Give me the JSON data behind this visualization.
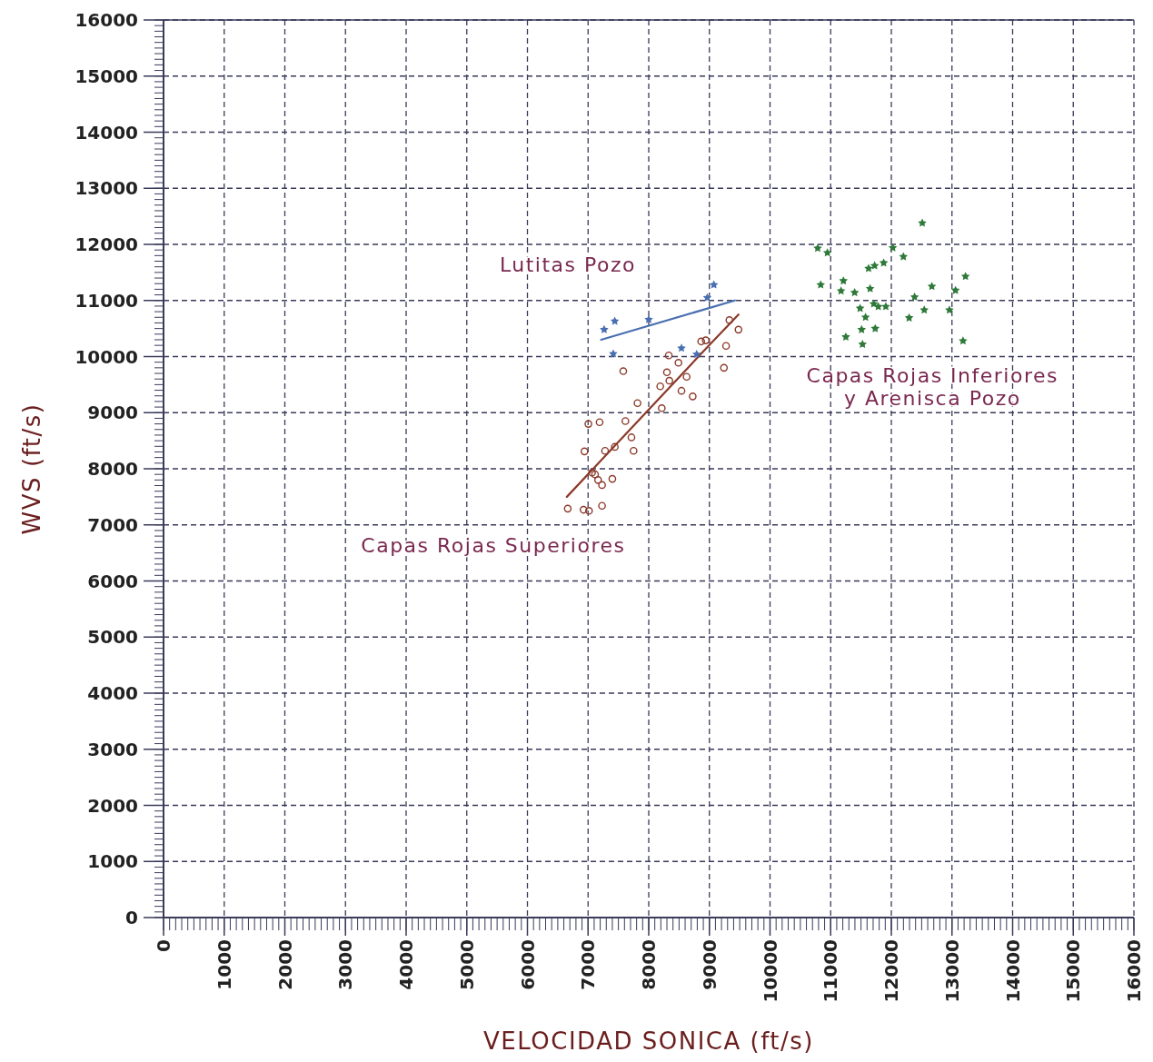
{
  "chart_data": {
    "type": "scatter",
    "xlabel": "VELOCIDAD SONICA (ft/s)",
    "ylabel": "WVS (ft/s)",
    "xlim": [
      0,
      16000
    ],
    "ylim": [
      0,
      16000
    ],
    "xticks": [
      0,
      1000,
      2000,
      3000,
      4000,
      5000,
      6000,
      7000,
      8000,
      9000,
      10000,
      11000,
      12000,
      13000,
      14000,
      15000,
      16000
    ],
    "yticks": [
      0,
      1000,
      2000,
      3000,
      4000,
      5000,
      6000,
      7000,
      8000,
      9000,
      10000,
      11000,
      12000,
      13000,
      14000,
      15000,
      16000
    ],
    "grid": true,
    "series": [
      {
        "name": "Capas Rojas Superiores",
        "marker": "circle",
        "color": "#8b3a2a",
        "x": [
          6665,
          6925,
          7015,
          7230,
          6940,
          7005,
          7190,
          7065,
          7115,
          7165,
          7230,
          7400,
          7280,
          7440,
          7615,
          7715,
          7750,
          7815,
          7580,
          8215,
          8190,
          8300,
          8340,
          8490,
          8330,
          8540,
          8625,
          8725,
          8865,
          8940,
          9330,
          9480,
          9275,
          9240
        ],
        "values": [
          7290,
          7270,
          7250,
          7340,
          8310,
          8800,
          8830,
          7930,
          7900,
          7800,
          7710,
          7820,
          8320,
          8390,
          8850,
          8560,
          8320,
          9170,
          9740,
          9080,
          9470,
          9720,
          9570,
          9890,
          10020,
          9390,
          9640,
          9290,
          10270,
          10290,
          10650,
          10480,
          10190,
          9800
        ]
      },
      {
        "type": "line",
        "marker": "none",
        "color": "#8b3a2a",
        "x": [
          6650,
          8950,
          9480
        ],
        "values": [
          7500,
          10150,
          10750
        ]
      },
      {
        "name": "Lutitas Pozo",
        "marker": "star",
        "color": "#4a6fb0",
        "x": [
          7265,
          7440,
          8000,
          7415,
          8965,
          9074,
          8790,
          8540
        ],
        "values": [
          10480,
          10630,
          10660,
          10050,
          11050,
          11280,
          10040,
          10150
        ]
      },
      {
        "type": "line",
        "marker": "none",
        "color": "#4a6fb0",
        "x": [
          7215,
          9420
        ],
        "values": [
          10300,
          11000
        ]
      },
      {
        "name": "Capas Rojas Inferiores\ny Arenisca Pozo",
        "marker": "star",
        "color": "#2f7a3a",
        "x": [
          12510,
          10786,
          10946,
          12024,
          12199,
          11625,
          11725,
          11874,
          10836,
          11210,
          11171,
          11395,
          11650,
          12668,
          13223,
          13058,
          12384,
          11710,
          11785,
          11909,
          11485,
          12543,
          12958,
          11575,
          12294,
          11510,
          11734,
          11250,
          11525,
          13182
        ],
        "values": [
          12380,
          11930,
          11850,
          11940,
          11780,
          11570,
          11620,
          11670,
          11280,
          11350,
          11170,
          11140,
          11210,
          11250,
          11430,
          11180,
          11060,
          10940,
          10890,
          10890,
          10860,
          10830,
          10830,
          10700,
          10690,
          10480,
          10500,
          10350,
          10220,
          10280
        ]
      }
    ]
  }
}
